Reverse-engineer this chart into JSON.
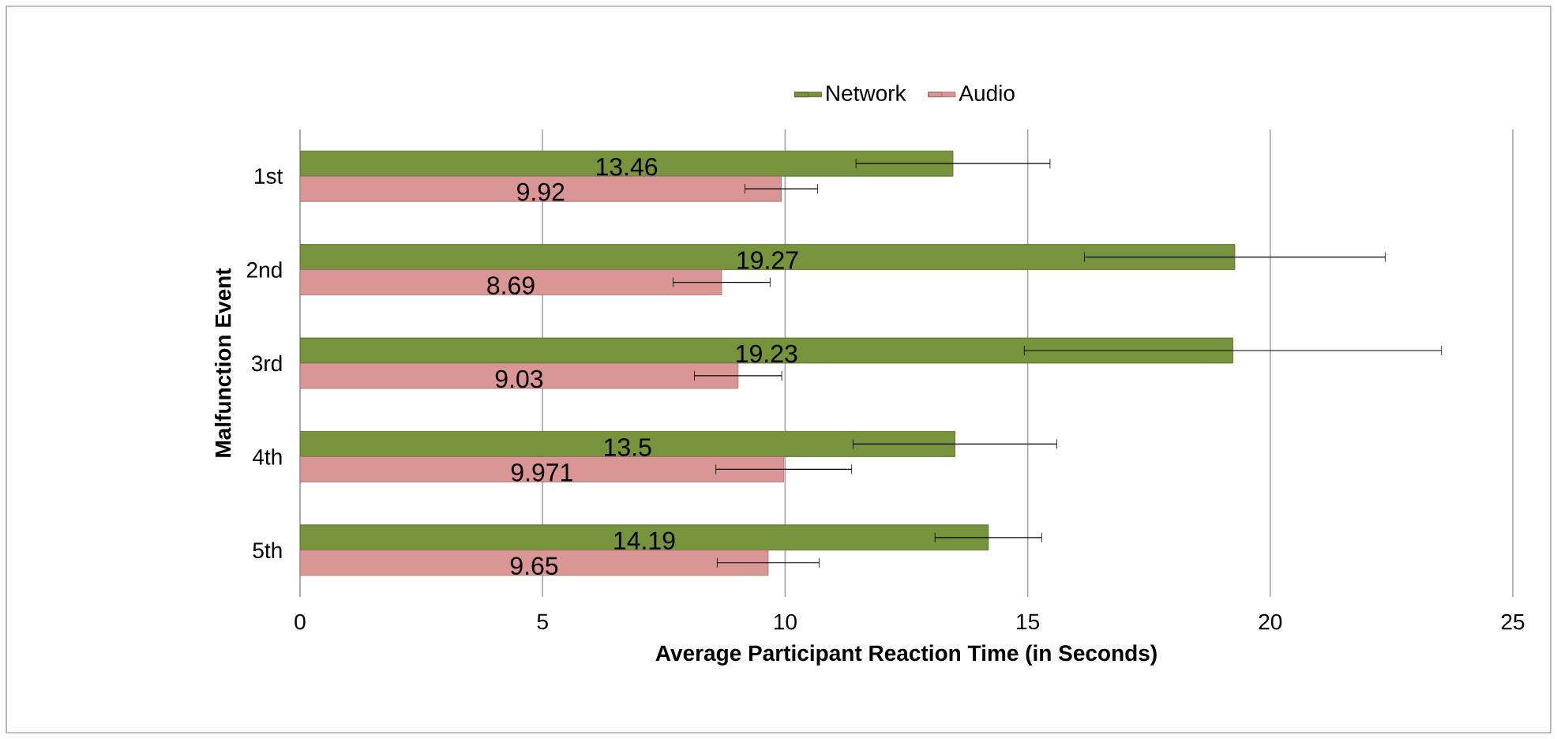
{
  "chart_data": {
    "type": "bar",
    "orientation": "horizontal",
    "xlabel": "Average Participant Reaction Time (in Seconds)",
    "ylabel": "Malfunction Event",
    "categories": [
      "1st",
      "2nd",
      "3rd",
      "4th",
      "5th"
    ],
    "series": [
      {
        "name": "Network",
        "color": "#77933c",
        "values": [
          13.46,
          19.27,
          19.23,
          13.5,
          14.19
        ],
        "errors": [
          2.0,
          3.1,
          4.3,
          2.1,
          1.1
        ]
      },
      {
        "name": "Audio",
        "color": "#d99694",
        "values": [
          9.92,
          8.69,
          9.03,
          9.971,
          9.65
        ],
        "errors": [
          0.75,
          1.0,
          0.9,
          1.4,
          1.05
        ]
      }
    ],
    "xlim": [
      0,
      25
    ],
    "xticks": [
      0,
      5,
      10,
      15,
      20,
      25
    ],
    "grid": "x",
    "legend": "top",
    "data_labels": true
  }
}
